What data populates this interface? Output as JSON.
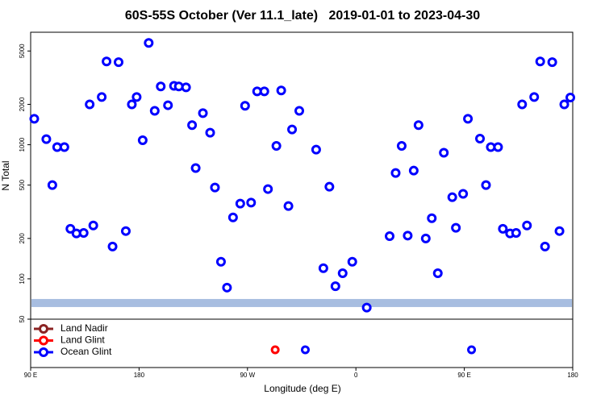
{
  "chart_data": {
    "type": "scatter",
    "title": "60S-55S October (Ver 11.1_late)   2019-01-01 to 2023-04-30",
    "xlabel": "Longitude (deg E)",
    "ylabel": "N Total",
    "log_y": true,
    "xlim": [
      90,
      540
    ],
    "ylim": [
      50,
      6900
    ],
    "xticks": [
      {
        "value": 90,
        "label": "90 E"
      },
      180,
      {
        "value": 270,
        "label": "90 W"
      },
      {
        "value": 360,
        "label": "0"
      },
      {
        "value": 450,
        "label": "90 E"
      },
      {
        "value": 540,
        "label": "180"
      }
    ],
    "yticks": [
      50,
      100,
      200,
      500,
      1000,
      2000,
      5000
    ],
    "reference_band": {
      "value": 66,
      "color": "#a7bde0"
    },
    "series": [
      {
        "name": "Land Nadir",
        "color": "#8b2323",
        "x": [],
        "values": [],
        "no_value_x": []
      },
      {
        "name": "Land Glint",
        "color": "#ff0000",
        "x": [],
        "values": [],
        "no_value_x": [
          293
        ]
      },
      {
        "name": "Ocean Glint",
        "color": "#0000ff",
        "x": [
          93,
          103,
          108,
          112,
          118,
          123,
          128,
          134,
          139,
          142,
          149,
          153,
          158,
          163,
          169,
          174,
          178,
          183,
          188,
          193,
          198,
          204,
          209,
          213,
          219,
          224,
          227,
          233,
          239,
          243,
          248,
          253,
          258,
          264,
          273,
          268,
          278,
          284,
          287,
          294,
          298,
          304,
          307,
          313,
          327,
          333,
          338,
          343,
          349,
          357,
          369,
          388,
          393,
          398,
          403,
          408,
          412,
          418,
          423,
          428,
          433,
          440,
          443,
          449,
          453,
          463,
          468,
          472,
          478,
          482,
          488,
          493,
          498,
          502,
          508,
          513,
          517,
          523,
          529,
          533,
          538
        ],
        "values": [
          1560,
          1100,
          500,
          960,
          960,
          236,
          218,
          220,
          2000,
          250,
          2270,
          4180,
          174,
          4130,
          227,
          2000,
          2270,
          1080,
          5740,
          1790,
          2720,
          1970,
          2750,
          2720,
          2680,
          1400,
          670,
          1720,
          1230,
          480,
          134,
          86,
          287,
          364,
          370,
          1950,
          2500,
          2500,
          467,
          980,
          2540,
          349,
          1300,
          1790,
          920,
          120,
          486,
          88,
          110,
          134,
          61,
          208,
          615,
          980,
          210,
          641,
          1400,
          200,
          283,
          110,
          871,
          406,
          240,
          430,
          1560,
          1110,
          500,
          960,
          960,
          236,
          218,
          220,
          2000,
          250,
          2270,
          4180,
          174,
          4130,
          227,
          2000,
          2250
        ],
        "no_value_x": [
          318,
          456
        ]
      }
    ]
  }
}
